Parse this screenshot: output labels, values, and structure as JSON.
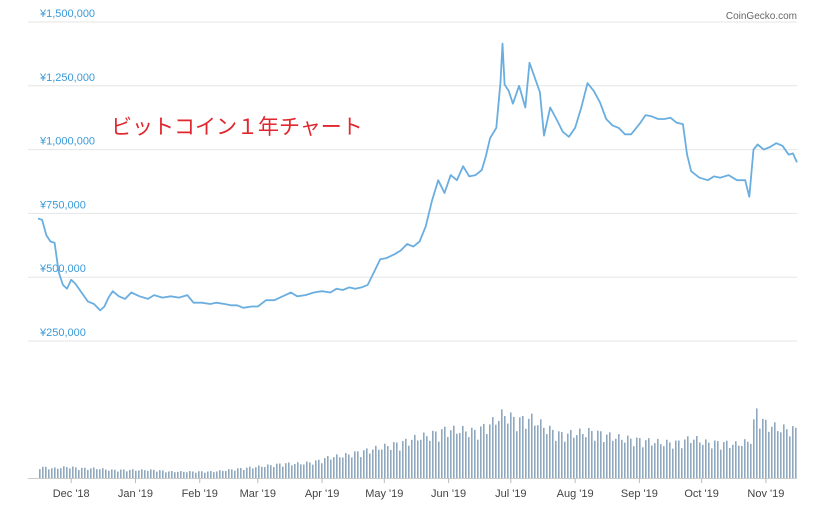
{
  "credit": "CoinGecko.com",
  "annotation": "ビットコイン１年チャート",
  "colors": {
    "price_line": "#6aaee0",
    "volume_bar": "#8fa8bf",
    "grid": "#e6e6e6",
    "ytick": "#3a9ad9",
    "annotation": "#e0262e"
  },
  "chart_data": {
    "type": "line",
    "title": "",
    "xlabel": "",
    "ylabel": "",
    "ylim": [
      250000,
      1500000
    ],
    "y_ticks": [
      "¥250,000",
      "¥500,000",
      "¥750,000",
      "¥1,000,000",
      "¥1,250,000",
      "¥1,500,000"
    ],
    "y_tick_values": [
      250000,
      500000,
      750000,
      1000000,
      1250000,
      1500000
    ],
    "x_range": [
      "2018-11-15",
      "2019-11-16"
    ],
    "x_ticks": [
      {
        "label": "Dec '18",
        "date": "2018-12-01"
      },
      {
        "label": "Jan '19",
        "date": "2019-01-01"
      },
      {
        "label": "Feb '19",
        "date": "2019-02-01"
      },
      {
        "label": "Mar '19",
        "date": "2019-03-01"
      },
      {
        "label": "Apr '19",
        "date": "2019-04-01"
      },
      {
        "label": "May '19",
        "date": "2019-05-01"
      },
      {
        "label": "Jun '19",
        "date": "2019-06-01"
      },
      {
        "label": "Jul '19",
        "date": "2019-07-01"
      },
      {
        "label": "Aug '19",
        "date": "2019-08-01"
      },
      {
        "label": "Sep '19",
        "date": "2019-09-01"
      },
      {
        "label": "Oct '19",
        "date": "2019-10-01"
      },
      {
        "label": "Nov '19",
        "date": "2019-11-01"
      }
    ],
    "grid": true,
    "series": [
      {
        "type": "line",
        "points": [
          [
            "2018-11-15",
            730000
          ],
          [
            "2018-11-17",
            725000
          ],
          [
            "2018-11-19",
            665000
          ],
          [
            "2018-11-21",
            640000
          ],
          [
            "2018-11-23",
            635000
          ],
          [
            "2018-11-25",
            520000
          ],
          [
            "2018-11-27",
            470000
          ],
          [
            "2018-11-29",
            455000
          ],
          [
            "2018-12-01",
            490000
          ],
          [
            "2018-12-03",
            475000
          ],
          [
            "2018-12-06",
            440000
          ],
          [
            "2018-12-09",
            405000
          ],
          [
            "2018-12-12",
            395000
          ],
          [
            "2018-12-15",
            370000
          ],
          [
            "2018-12-17",
            385000
          ],
          [
            "2018-12-19",
            420000
          ],
          [
            "2018-12-21",
            445000
          ],
          [
            "2018-12-24",
            425000
          ],
          [
            "2018-12-27",
            415000
          ],
          [
            "2018-12-30",
            440000
          ],
          [
            "2019-01-03",
            425000
          ],
          [
            "2019-01-07",
            415000
          ],
          [
            "2019-01-10",
            430000
          ],
          [
            "2019-01-14",
            420000
          ],
          [
            "2019-01-18",
            425000
          ],
          [
            "2019-01-22",
            420000
          ],
          [
            "2019-01-26",
            430000
          ],
          [
            "2019-01-29",
            400000
          ],
          [
            "2019-02-02",
            400000
          ],
          [
            "2019-02-06",
            395000
          ],
          [
            "2019-02-09",
            400000
          ],
          [
            "2019-02-13",
            395000
          ],
          [
            "2019-02-16",
            390000
          ],
          [
            "2019-02-19",
            390000
          ],
          [
            "2019-02-22",
            380000
          ],
          [
            "2019-02-26",
            385000
          ],
          [
            "2019-03-01",
            385000
          ],
          [
            "2019-03-05",
            410000
          ],
          [
            "2019-03-09",
            410000
          ],
          [
            "2019-03-13",
            425000
          ],
          [
            "2019-03-17",
            440000
          ],
          [
            "2019-03-20",
            425000
          ],
          [
            "2019-03-24",
            430000
          ],
          [
            "2019-03-28",
            440000
          ],
          [
            "2019-04-01",
            445000
          ],
          [
            "2019-04-05",
            440000
          ],
          [
            "2019-04-08",
            455000
          ],
          [
            "2019-04-11",
            450000
          ],
          [
            "2019-04-14",
            460000
          ],
          [
            "2019-04-17",
            455000
          ],
          [
            "2019-04-20",
            460000
          ],
          [
            "2019-04-23",
            470000
          ],
          [
            "2019-04-26",
            520000
          ],
          [
            "2019-04-29",
            570000
          ],
          [
            "2019-05-02",
            575000
          ],
          [
            "2019-05-06",
            590000
          ],
          [
            "2019-05-09",
            605000
          ],
          [
            "2019-05-12",
            630000
          ],
          [
            "2019-05-15",
            620000
          ],
          [
            "2019-05-18",
            640000
          ],
          [
            "2019-05-21",
            700000
          ],
          [
            "2019-05-24",
            800000
          ],
          [
            "2019-05-27",
            880000
          ],
          [
            "2019-05-30",
            830000
          ],
          [
            "2019-06-02",
            900000
          ],
          [
            "2019-06-05",
            880000
          ],
          [
            "2019-06-08",
            935000
          ],
          [
            "2019-06-11",
            895000
          ],
          [
            "2019-06-14",
            900000
          ],
          [
            "2019-06-17",
            920000
          ],
          [
            "2019-06-19",
            975000
          ],
          [
            "2019-06-21",
            1045000
          ],
          [
            "2019-06-24",
            1085000
          ],
          [
            "2019-06-26",
            1265000
          ],
          [
            "2019-06-27",
            1415000
          ],
          [
            "2019-06-28",
            1255000
          ],
          [
            "2019-06-30",
            1230000
          ],
          [
            "2019-07-02",
            1180000
          ],
          [
            "2019-07-05",
            1250000
          ],
          [
            "2019-07-08",
            1165000
          ],
          [
            "2019-07-10",
            1340000
          ],
          [
            "2019-07-12",
            1295000
          ],
          [
            "2019-07-15",
            1225000
          ],
          [
            "2019-07-17",
            1055000
          ],
          [
            "2019-07-20",
            1165000
          ],
          [
            "2019-07-23",
            1120000
          ],
          [
            "2019-07-26",
            1070000
          ],
          [
            "2019-07-29",
            1050000
          ],
          [
            "2019-08-01",
            1085000
          ],
          [
            "2019-08-04",
            1165000
          ],
          [
            "2019-08-07",
            1260000
          ],
          [
            "2019-08-10",
            1230000
          ],
          [
            "2019-08-13",
            1185000
          ],
          [
            "2019-08-16",
            1120000
          ],
          [
            "2019-08-19",
            1095000
          ],
          [
            "2019-08-22",
            1085000
          ],
          [
            "2019-08-25",
            1060000
          ],
          [
            "2019-08-28",
            1060000
          ],
          [
            "2019-09-01",
            1100000
          ],
          [
            "2019-09-04",
            1135000
          ],
          [
            "2019-09-07",
            1130000
          ],
          [
            "2019-09-10",
            1120000
          ],
          [
            "2019-09-13",
            1120000
          ],
          [
            "2019-09-16",
            1125000
          ],
          [
            "2019-09-19",
            1105000
          ],
          [
            "2019-09-22",
            1100000
          ],
          [
            "2019-09-24",
            980000
          ],
          [
            "2019-09-26",
            915000
          ],
          [
            "2019-09-30",
            890000
          ],
          [
            "2019-10-04",
            880000
          ],
          [
            "2019-10-07",
            895000
          ],
          [
            "2019-10-10",
            890000
          ],
          [
            "2019-10-14",
            900000
          ],
          [
            "2019-10-18",
            880000
          ],
          [
            "2019-10-22",
            880000
          ],
          [
            "2019-10-24",
            815000
          ],
          [
            "2019-10-26",
            1000000
          ],
          [
            "2019-10-28",
            1020000
          ],
          [
            "2019-10-31",
            1000000
          ],
          [
            "2019-11-03",
            1010000
          ],
          [
            "2019-11-06",
            1025000
          ],
          [
            "2019-11-09",
            1015000
          ],
          [
            "2019-11-12",
            980000
          ],
          [
            "2019-11-14",
            985000
          ],
          [
            "2019-11-16",
            950000
          ]
        ]
      },
      {
        "type": "bar",
        "points": [
          [
            "2018-11-15",
            7
          ],
          [
            "2018-11-22",
            6
          ],
          [
            "2018-11-29",
            7
          ],
          [
            "2018-12-06",
            6
          ],
          [
            "2018-12-13",
            6
          ],
          [
            "2018-12-20",
            5
          ],
          [
            "2018-12-27",
            5
          ],
          [
            "2019-01-03",
            5
          ],
          [
            "2019-01-10",
            5
          ],
          [
            "2019-01-17",
            4
          ],
          [
            "2019-01-24",
            4
          ],
          [
            "2019-01-31",
            4
          ],
          [
            "2019-02-07",
            4
          ],
          [
            "2019-02-14",
            5
          ],
          [
            "2019-02-21",
            6
          ],
          [
            "2019-02-28",
            7
          ],
          [
            "2019-03-07",
            8
          ],
          [
            "2019-03-14",
            9
          ],
          [
            "2019-03-21",
            9
          ],
          [
            "2019-03-28",
            10
          ],
          [
            "2019-04-04",
            13
          ],
          [
            "2019-04-11",
            14
          ],
          [
            "2019-04-18",
            16
          ],
          [
            "2019-04-25",
            18
          ],
          [
            "2019-05-02",
            20
          ],
          [
            "2019-05-09",
            22
          ],
          [
            "2019-05-16",
            25
          ],
          [
            "2019-05-23",
            27
          ],
          [
            "2019-05-30",
            30
          ],
          [
            "2019-06-06",
            30
          ],
          [
            "2019-06-13",
            29
          ],
          [
            "2019-06-20",
            33
          ],
          [
            "2019-06-27",
            40
          ],
          [
            "2019-07-04",
            36
          ],
          [
            "2019-07-11",
            37
          ],
          [
            "2019-07-18",
            31
          ],
          [
            "2019-07-25",
            27
          ],
          [
            "2019-08-01",
            28
          ],
          [
            "2019-08-08",
            29
          ],
          [
            "2019-08-15",
            27
          ],
          [
            "2019-08-22",
            25
          ],
          [
            "2019-08-29",
            24
          ],
          [
            "2019-09-05",
            23
          ],
          [
            "2019-09-12",
            22
          ],
          [
            "2019-09-19",
            22
          ],
          [
            "2019-09-26",
            25
          ],
          [
            "2019-10-03",
            22
          ],
          [
            "2019-10-10",
            22
          ],
          [
            "2019-10-17",
            21
          ],
          [
            "2019-10-24",
            23
          ],
          [
            "2019-10-27",
            42
          ],
          [
            "2019-10-31",
            34
          ],
          [
            "2019-11-07",
            31
          ],
          [
            "2019-11-16",
            30
          ]
        ]
      }
    ]
  }
}
